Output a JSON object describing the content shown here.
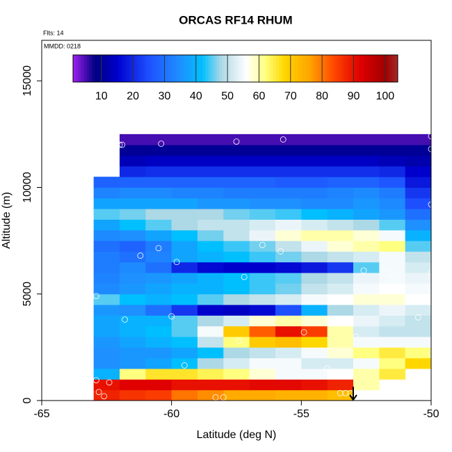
{
  "chart_data": {
    "type": "heatmap",
    "title": "ORCAS RF14 RHUM",
    "annotations": [
      "Flts: 14",
      "MMDD: 0218"
    ],
    "x_label": "Latitude (deg N)",
    "y_label": "Altitude (m)",
    "xlim": [
      -65,
      -50
    ],
    "ylim": [
      0,
      16900
    ],
    "xticks": [
      -65,
      -60,
      -55,
      -50
    ],
    "yticks": [
      0,
      5000,
      10000,
      15000
    ],
    "x_bins": [
      -63,
      -62,
      -61,
      -60,
      -59,
      -58,
      -57,
      -56,
      -55,
      -54,
      -53,
      -52,
      -51,
      -50
    ],
    "y_bins": [
      0,
      500,
      1000,
      1500,
      2000,
      2500,
      3000,
      3500,
      4000,
      4500,
      5000,
      5500,
      6000,
      6500,
      7000,
      7500,
      8000,
      8500,
      9000,
      9500,
      10000,
      10500,
      11000,
      11500,
      12000,
      12500
    ],
    "z": [
      [
        88,
        86,
        85,
        80,
        78,
        75,
        75,
        74,
        74,
        72,
        null,
        null,
        null
      ],
      [
        90,
        92,
        92,
        90,
        90,
        90,
        91,
        91,
        90,
        88,
        60,
        null,
        null
      ],
      [
        40,
        62,
        66,
        66,
        64,
        62,
        58,
        55,
        55,
        56,
        60,
        65,
        null
      ],
      [
        35,
        36,
        38,
        42,
        48,
        52,
        55,
        55,
        52,
        52,
        55,
        62,
        68
      ],
      [
        35,
        36,
        36,
        38,
        42,
        48,
        50,
        52,
        55,
        58,
        62,
        65,
        62
      ],
      [
        36,
        38,
        40,
        42,
        50,
        62,
        70,
        72,
        68,
        60,
        55,
        55,
        55
      ],
      [
        38,
        40,
        42,
        45,
        55,
        70,
        82,
        90,
        85,
        60,
        52,
        50,
        50
      ],
      [
        38,
        40,
        40,
        45,
        48,
        52,
        58,
        60,
        58,
        56,
        54,
        52,
        50
      ],
      [
        36,
        35,
        30,
        22,
        15,
        14,
        16,
        25,
        40,
        48,
        52,
        54,
        52
      ],
      [
        45,
        42,
        40,
        42,
        45,
        48,
        50,
        52,
        55,
        56,
        58,
        58,
        56
      ],
      [
        34,
        36,
        38,
        40,
        40,
        42,
        44,
        46,
        50,
        52,
        55,
        56,
        55
      ],
      [
        33,
        35,
        36,
        38,
        40,
        42,
        44,
        45,
        48,
        50,
        54,
        55,
        54
      ],
      [
        32,
        34,
        30,
        20,
        16,
        15,
        15,
        16,
        18,
        22,
        45,
        55,
        52
      ],
      [
        32,
        30,
        33,
        38,
        40,
        42,
        44,
        46,
        48,
        50,
        52,
        55,
        50
      ],
      [
        30,
        28,
        32,
        38,
        42,
        44,
        46,
        50,
        54,
        58,
        60,
        62,
        45
      ],
      [
        34,
        35,
        38,
        42,
        46,
        50,
        54,
        58,
        60,
        60,
        58,
        55,
        40
      ],
      [
        38,
        42,
        45,
        48,
        50,
        50,
        52,
        54,
        52,
        50,
        48,
        45,
        35
      ],
      [
        45,
        46,
        48,
        48,
        48,
        46,
        45,
        44,
        42,
        40,
        38,
        36,
        30
      ],
      [
        38,
        38,
        38,
        38,
        36,
        36,
        35,
        35,
        34,
        34,
        36,
        34,
        25
      ],
      [
        33,
        34,
        34,
        33,
        33,
        32,
        32,
        32,
        32,
        33,
        34,
        32,
        22
      ],
      [
        28,
        28,
        28,
        28,
        28,
        28,
        28,
        27,
        27,
        28,
        28,
        26,
        18
      ],
      [
        null,
        20,
        21,
        21,
        21,
        21,
        21,
        21,
        21,
        21,
        21,
        20,
        15
      ],
      [
        null,
        13,
        14,
        14,
        14,
        14,
        14,
        14,
        14,
        14,
        14,
        13,
        12
      ],
      [
        null,
        10,
        10,
        10,
        10,
        10,
        10,
        10,
        10,
        10,
        10,
        10,
        10
      ],
      [
        null,
        5,
        5,
        5,
        5,
        5,
        5,
        5,
        5,
        5,
        5,
        5,
        5
      ]
    ],
    "zlim": [
      1,
      104
    ],
    "colorbar_ticks": [
      10,
      20,
      30,
      40,
      50,
      60,
      70,
      80,
      90,
      100
    ],
    "colorscale": [
      [
        1,
        "#a020f0"
      ],
      [
        8,
        "#000080"
      ],
      [
        15,
        "#0000cd"
      ],
      [
        25,
        "#1e4fff"
      ],
      [
        35,
        "#1e90ff"
      ],
      [
        42,
        "#00bfff"
      ],
      [
        48,
        "#add8e6"
      ],
      [
        56,
        "#ffffff"
      ],
      [
        62,
        "#ffff80"
      ],
      [
        68,
        "#ffd700"
      ],
      [
        76,
        "#ffa500"
      ],
      [
        84,
        "#ff4500"
      ],
      [
        92,
        "#e00000"
      ],
      [
        100,
        "#a00000"
      ],
      [
        104,
        "#a52a2a"
      ]
    ],
    "points": {
      "x": [
        -62.0,
        -61.9,
        -60.4,
        -57.5,
        -55.7,
        -50,
        -50,
        -50,
        -61.2,
        -60.5,
        -59.8,
        -56.5,
        -55.8,
        -57.2,
        -52.6,
        -51.6,
        -50,
        -62.9,
        -61.8,
        -60,
        -57.4,
        -54.9,
        -52.9,
        -50.5,
        -59.5,
        -54,
        -50,
        -62.9,
        -62.4,
        -62.8,
        -62.6,
        -58.3,
        -58,
        -53.5,
        -53.3,
        -53.1
      ],
      "y": [
        12000,
        12000,
        12050,
        12150,
        12250,
        12400,
        11800,
        9200,
        6800,
        7150,
        6500,
        7300,
        7000,
        5800,
        6100,
        5950,
        6000,
        4900,
        3800,
        3950,
        2800,
        3200,
        3000,
        3900,
        1650,
        1500,
        2200,
        950,
        850,
        400,
        200,
        150,
        150,
        350,
        350,
        350
      ],
      "color": "#ffffff"
    },
    "arrow_x": -53
  }
}
